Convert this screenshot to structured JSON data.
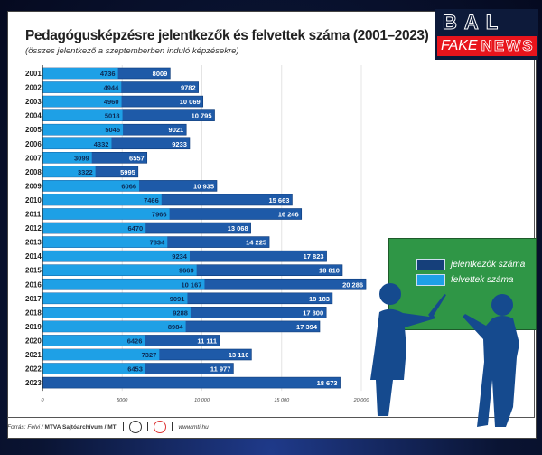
{
  "chart_data": {
    "type": "bar",
    "orientation": "horizontal",
    "title": "Pedagógusképzésre jelentkezők és felvettek száma (2001–2023)",
    "subtitle": "(összes jelentkező a szeptemberben induló képzésekre)",
    "categories": [
      "2001",
      "2002",
      "2003",
      "2004",
      "2005",
      "2006",
      "2007",
      "2008",
      "2009",
      "2010",
      "2011",
      "2012",
      "2013",
      "2014",
      "2015",
      "2016",
      "2017",
      "2018",
      "2019",
      "2020",
      "2021",
      "2022",
      "2023"
    ],
    "series": [
      {
        "name": "jelentkezők száma",
        "color": "#1e5aa8",
        "values": [
          8009,
          9782,
          10069,
          10795,
          9021,
          9233,
          6557,
          5995,
          10935,
          15663,
          16246,
          13068,
          14225,
          17823,
          18810,
          20286,
          18183,
          17800,
          17394,
          11111,
          13110,
          11977,
          18673
        ],
        "labels": [
          "8009",
          "9782",
          "10 069",
          "10 795",
          "9021",
          "9233",
          "6557",
          "5995",
          "10 935",
          "15 663",
          "16 246",
          "13 068",
          "14 225",
          "17 823",
          "18 810",
          "20 286",
          "18 183",
          "17 800",
          "17 394",
          "11 111",
          "13 110",
          "11 977",
          "18 673"
        ]
      },
      {
        "name": "felvettek száma",
        "color": "#1ea0e6",
        "values": [
          4736,
          4944,
          4960,
          5018,
          5045,
          4332,
          3099,
          3322,
          6066,
          7466,
          7966,
          6470,
          7834,
          9234,
          9669,
          10167,
          9091,
          9288,
          8984,
          6426,
          7327,
          6453,
          null
        ],
        "labels": [
          "4736",
          "4944",
          "4960",
          "5018",
          "5045",
          "4332",
          "3099",
          "3322",
          "6066",
          "7466",
          "7966",
          "6470",
          "7834",
          "9234",
          "9669",
          "10 167",
          "9091",
          "9288",
          "8984",
          "6426",
          "7327",
          "6453",
          null
        ]
      }
    ],
    "xticks": [
      0,
      5000,
      10000,
      15000,
      20000
    ],
    "xtick_labels": [
      "0",
      "5000",
      "10 000",
      "15 000",
      "20 000"
    ],
    "xlim": [
      0,
      20000
    ],
    "legend_position": "right"
  },
  "legend": {
    "jelentkezok": "jelentkezők száma",
    "felvettek": "felvettek száma"
  },
  "footer": {
    "source_prefix": "Forrás: Felvi / ",
    "source_bold": "MTVA Sajtóarchívum / MTI",
    "url": "www.mti.hu"
  },
  "brand": {
    "line1": "BAL",
    "fake": "FAKE",
    "news": "NEWS"
  }
}
